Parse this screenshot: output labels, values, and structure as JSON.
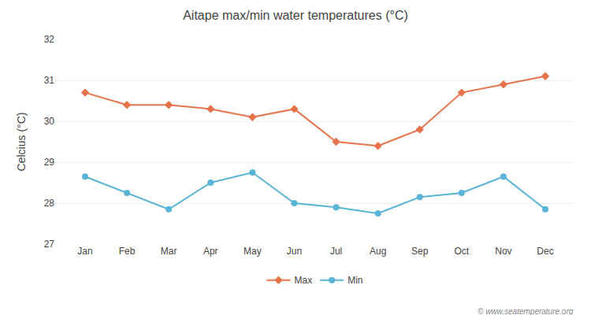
{
  "chart_data": {
    "type": "line",
    "title": "Aitape max/min water temperatures (°C)",
    "ylabel": "Celcius (°C)",
    "categories": [
      "Jan",
      "Feb",
      "Mar",
      "Apr",
      "May",
      "Jun",
      "Jul",
      "Aug",
      "Sep",
      "Oct",
      "Nov",
      "Dec"
    ],
    "series": [
      {
        "name": "Max",
        "color": "#e8724a",
        "marker": "diamond",
        "values": [
          30.7,
          30.4,
          30.4,
          30.3,
          30.1,
          30.3,
          29.5,
          29.4,
          29.8,
          30.7,
          30.9,
          31.1
        ]
      },
      {
        "name": "Min",
        "color": "#5ab4d6",
        "marker": "circle",
        "values": [
          28.65,
          28.25,
          27.85,
          28.5,
          28.75,
          28.0,
          27.9,
          27.75,
          28.15,
          28.25,
          28.65,
          27.85
        ]
      }
    ],
    "ylim": [
      27,
      32
    ],
    "yticks": [
      27,
      28,
      29,
      30,
      31,
      32
    ],
    "grid": true,
    "legend": "bottom",
    "annotations": [
      "© www.seatemperature.org"
    ]
  }
}
